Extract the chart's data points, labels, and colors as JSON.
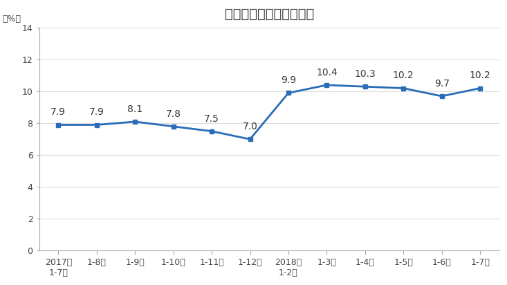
{
  "title": "全国房地产开发投资增速",
  "ylabel": "（%）",
  "categories": [
    "2017年\n1-7月",
    "1-8月",
    "1-9月",
    "1-10月",
    "1-11月",
    "1-12月",
    "2018年\n1-2月",
    "1-3月",
    "1-4月",
    "1-5月",
    "1-6月",
    "1-7月"
  ],
  "values": [
    7.9,
    7.9,
    8.1,
    7.8,
    7.5,
    7.0,
    9.9,
    10.4,
    10.3,
    10.2,
    9.7,
    10.2
  ],
  "line_color": "#2B6CB8",
  "marker": "s",
  "marker_size": 5,
  "ylim": [
    0,
    14
  ],
  "yticks": [
    0,
    2,
    4,
    6,
    8,
    10,
    12,
    14
  ],
  "bg_color": "#ffffff",
  "plot_bg_color": "#ffffff",
  "title_fontsize": 14,
  "label_fontsize": 9,
  "tick_fontsize": 9,
  "annotation_fontsize": 9
}
